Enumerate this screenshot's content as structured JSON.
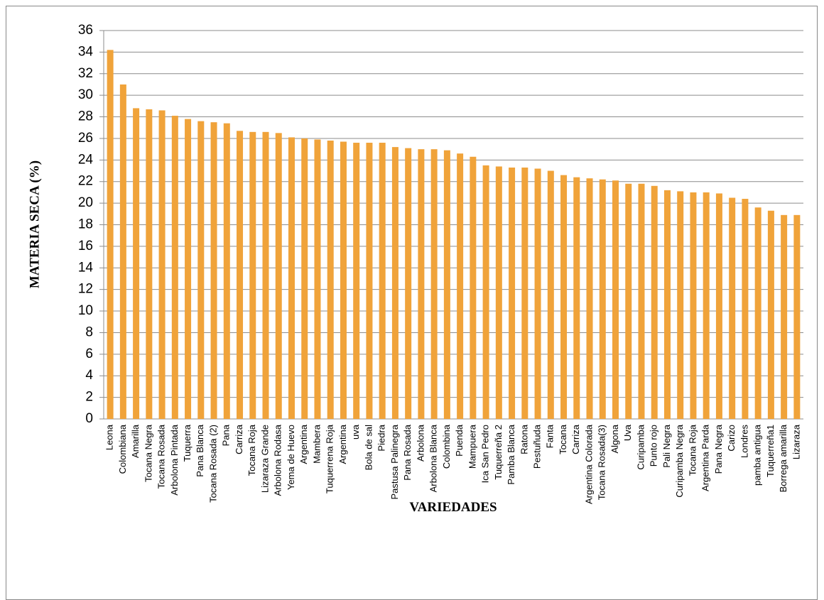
{
  "chart_data": {
    "type": "bar",
    "x_label": "VARIEDADES",
    "y_label": "MATERIA SECA (%)",
    "categories": [
      "Leona",
      "Colombiana",
      "Amarilla",
      "Tocana Negra",
      "Tocana Rosada",
      "Arbolona Pintada",
      "Tuquerra",
      "Pana Blanca",
      "Tocana Rosada (2)",
      "Pana",
      "Carriza",
      "Tocana Roja",
      "Lizaraza Grande",
      "Arbolona Rodasa",
      "Yema de Huevo",
      "Argentina",
      "Mambera",
      "Tuquerrena Roja",
      "Argentina",
      "uva",
      "Bola de sal",
      "Piedra",
      "Pastusa Palinegra",
      "Pana Rosada",
      "Arbolona",
      "Arbolona Blanca",
      "Colombina",
      "Puenda",
      "Mampuera",
      "Ica San Pedro",
      "Tuquerreña 2",
      "Pamba Blanca",
      "Ratona",
      "Pestuñuda",
      "Fanta",
      "Tocana",
      "Carriza",
      "Argentina Colorada",
      "Tocana Rosada(3)",
      "Algona",
      "Uva",
      "Curipamba",
      "Punto rojo",
      "Pali Negra",
      "Curipamba Negra",
      "Tocana Roja",
      "Argentina Parda",
      "Pana Negra",
      "Carizo",
      "Londres",
      "pamba antigua",
      "Tuquerreña1",
      "Borrega amarilla",
      "Lizaraza"
    ],
    "values": [
      34.2,
      31.0,
      28.8,
      28.7,
      28.6,
      28.1,
      27.8,
      27.6,
      27.5,
      27.4,
      26.7,
      26.6,
      26.6,
      26.5,
      26.1,
      26.0,
      25.9,
      25.8,
      25.7,
      25.6,
      25.6,
      25.6,
      25.2,
      25.1,
      25.0,
      25.0,
      24.9,
      24.6,
      24.3,
      23.5,
      23.4,
      23.3,
      23.3,
      23.2,
      23.0,
      22.6,
      22.4,
      22.3,
      22.2,
      22.1,
      21.8,
      21.8,
      21.6,
      21.2,
      21.1,
      21.0,
      21.0,
      20.9,
      20.5,
      20.4,
      19.6,
      19.3,
      18.9,
      18.9
    ],
    "color": "#f0a33a",
    "ylim": [
      0,
      36
    ],
    "yticks": [
      0,
      2,
      4,
      6,
      8,
      10,
      12,
      14,
      16,
      18,
      20,
      22,
      24,
      26,
      28,
      30,
      32,
      34,
      36
    ],
    "grid": true
  }
}
